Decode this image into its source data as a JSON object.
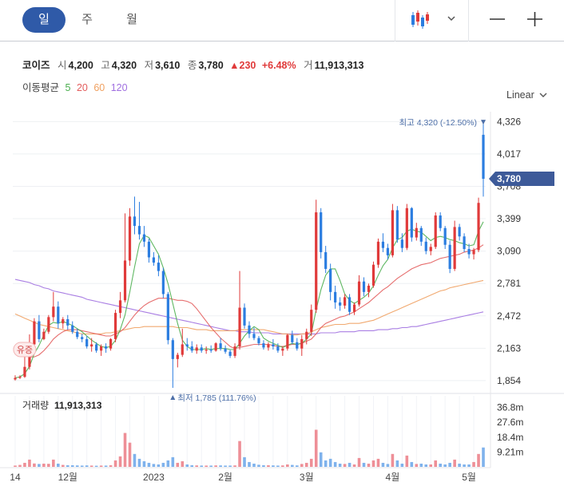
{
  "toolbar": {
    "tabs": [
      {
        "label": "일"
      },
      {
        "label": "주"
      },
      {
        "label": "월"
      }
    ],
    "chart_type_icon": "candlestick-icon",
    "dropdown_icon": "chevron-down-icon",
    "zoom_out_icon": "minus-icon",
    "zoom_in_icon": "plus-icon"
  },
  "info": {
    "name": "코이즈",
    "open_label": "시",
    "open": "4,200",
    "high_label": "고",
    "high": "4,320",
    "low_label": "저",
    "low": "3,610",
    "close_label": "종",
    "close": "3,780",
    "change": "▲230",
    "change_pct": "+6.48%",
    "volume_label": "거",
    "volume": "11,913,313"
  },
  "ma": {
    "label": "이동평균",
    "items": [
      {
        "period": "5",
        "color": "#4caf50"
      },
      {
        "period": "20",
        "color": "#e35d5d"
      },
      {
        "period": "60",
        "color": "#f0a060"
      },
      {
        "period": "120",
        "color": "#a070e0"
      }
    ]
  },
  "scale_label": "Linear",
  "colors": {
    "up": "#e03a3a",
    "down": "#2b7de0",
    "current": "#3d5a99",
    "grid": "#eef0f3"
  },
  "chart_data": [
    {
      "type": "candlestick",
      "price_ticks": [
        "4,326",
        "4,017",
        "3,708",
        "3,399",
        "3,090",
        "2,781",
        "2,472",
        "2,163",
        "1,854"
      ],
      "price_tick_values": [
        4326,
        4017,
        3708,
        3399,
        3090,
        2781,
        2472,
        2163,
        1854
      ],
      "ylim": [
        1800,
        4420
      ],
      "x_labels": [
        "14",
        "12월",
        "2023",
        "2월",
        "3월",
        "4월",
        "5월"
      ],
      "x_label_index": [
        0,
        11,
        29,
        44,
        61,
        79,
        95
      ],
      "current_price": "3,780",
      "max_annotation": "최고 4,320 (-12.50%)",
      "min_annotation": "최저 1,785 (111.76%)",
      "event_marker": "유증",
      "candles": [
        [
          1865,
          1905,
          1855,
          1880
        ],
        [
          1880,
          1905,
          1870,
          1890
        ],
        [
          1890,
          2130,
          1880,
          1985
        ],
        [
          1985,
          2295,
          1960,
          2200
        ],
        [
          2200,
          2450,
          2180,
          2420
        ],
        [
          2420,
          2480,
          2220,
          2250
        ],
        [
          2250,
          2350,
          2240,
          2320
        ],
        [
          2320,
          2480,
          2300,
          2460
        ],
        [
          2460,
          2700,
          2420,
          2560
        ],
        [
          2560,
          2610,
          2350,
          2400
        ],
        [
          2400,
          2460,
          2350,
          2440
        ],
        [
          2440,
          2480,
          2340,
          2380
        ],
        [
          2380,
          2420,
          2300,
          2320
        ],
        [
          2320,
          2350,
          2250,
          2270
        ],
        [
          2270,
          2300,
          2220,
          2250
        ],
        [
          2250,
          2280,
          2160,
          2180
        ],
        [
          2180,
          2260,
          2130,
          2200
        ],
        [
          2200,
          2220,
          2120,
          2140
        ],
        [
          2140,
          2200,
          2090,
          2180
        ],
        [
          2180,
          2210,
          2120,
          2160
        ],
        [
          2160,
          2260,
          2140,
          2250
        ],
        [
          2250,
          2530,
          2220,
          2500
        ],
        [
          2500,
          2700,
          2450,
          2620
        ],
        [
          2620,
          3450,
          2600,
          3000
        ],
        [
          3000,
          3500,
          2950,
          3420
        ],
        [
          3420,
          3610,
          3250,
          3330
        ],
        [
          3330,
          3560,
          3200,
          3250
        ],
        [
          3250,
          3330,
          3130,
          3180
        ],
        [
          3180,
          3210,
          2980,
          3030
        ],
        [
          3030,
          3080,
          2950,
          2980
        ],
        [
          2980,
          3050,
          2850,
          2900
        ],
        [
          2900,
          2930,
          2640,
          2680
        ],
        [
          2680,
          2700,
          2200,
          2240
        ],
        [
          2240,
          2260,
          1785,
          2060
        ],
        [
          2060,
          2120,
          1980,
          2100
        ],
        [
          2100,
          2350,
          2080,
          2200
        ],
        [
          2200,
          2260,
          2140,
          2180
        ],
        [
          2180,
          2230,
          2120,
          2140
        ],
        [
          2140,
          2200,
          2110,
          2170
        ],
        [
          2170,
          2200,
          2120,
          2140
        ],
        [
          2140,
          2180,
          2110,
          2150
        ],
        [
          2150,
          2190,
          2120,
          2140
        ],
        [
          2140,
          2220,
          2130,
          2210
        ],
        [
          2210,
          2260,
          2140,
          2160
        ],
        [
          2160,
          2190,
          2110,
          2130
        ],
        [
          2130,
          2150,
          2070,
          2090
        ],
        [
          2090,
          2210,
          2070,
          2180
        ],
        [
          2180,
          2900,
          2150,
          2550
        ],
        [
          2550,
          2590,
          2350,
          2380
        ],
        [
          2380,
          2420,
          2260,
          2300
        ],
        [
          2300,
          2360,
          2240,
          2260
        ],
        [
          2260,
          2280,
          2190,
          2210
        ],
        [
          2210,
          2240,
          2150,
          2170
        ],
        [
          2170,
          2220,
          2140,
          2200
        ],
        [
          2200,
          2250,
          2150,
          2180
        ],
        [
          2180,
          2210,
          2120,
          2140
        ],
        [
          2140,
          2180,
          2090,
          2160
        ],
        [
          2160,
          2300,
          2140,
          2290
        ],
        [
          2290,
          2330,
          2200,
          2220
        ],
        [
          2220,
          2260,
          2140,
          2160
        ],
        [
          2160,
          2290,
          2090,
          2250
        ],
        [
          2250,
          2350,
          2200,
          2320
        ],
        [
          2320,
          2580,
          2280,
          2530
        ],
        [
          2530,
          3580,
          2500,
          3460
        ],
        [
          3460,
          3500,
          3020,
          3080
        ],
        [
          3080,
          3140,
          2880,
          2920
        ],
        [
          2920,
          2970,
          2620,
          2700
        ],
        [
          2700,
          2760,
          2540,
          2600
        ],
        [
          2600,
          2650,
          2520,
          2570
        ],
        [
          2570,
          2680,
          2540,
          2650
        ],
        [
          2650,
          2680,
          2480,
          2510
        ],
        [
          2510,
          2600,
          2480,
          2580
        ],
        [
          2580,
          2860,
          2560,
          2800
        ],
        [
          2800,
          2840,
          2660,
          2700
        ],
        [
          2700,
          2780,
          2650,
          2760
        ],
        [
          2760,
          2990,
          2740,
          2960
        ],
        [
          2960,
          3210,
          2930,
          3180
        ],
        [
          3180,
          3260,
          3080,
          3120
        ],
        [
          3120,
          3160,
          3010,
          3050
        ],
        [
          3050,
          3540,
          3030,
          3480
        ],
        [
          3480,
          3520,
          3170,
          3200
        ],
        [
          3200,
          3260,
          3080,
          3120
        ],
        [
          3120,
          3540,
          3100,
          3500
        ],
        [
          3500,
          3510,
          3180,
          3220
        ],
        [
          3220,
          3360,
          3190,
          3310
        ],
        [
          3310,
          3330,
          3140,
          3180
        ],
        [
          3180,
          3220,
          3060,
          3090
        ],
        [
          3090,
          3160,
          3050,
          3130
        ],
        [
          3130,
          3460,
          3110,
          3430
        ],
        [
          3430,
          3460,
          3280,
          3310
        ],
        [
          3310,
          3330,
          3110,
          3150
        ],
        [
          3150,
          3190,
          2880,
          2920
        ],
        [
          2920,
          3380,
          2900,
          3320
        ],
        [
          3320,
          3350,
          3190,
          3230
        ],
        [
          3230,
          3260,
          3080,
          3110
        ],
        [
          3110,
          3160,
          3020,
          3060
        ],
        [
          3060,
          3120,
          3010,
          3100
        ],
        [
          3100,
          3600,
          3080,
          3550
        ],
        [
          4200,
          4320,
          3610,
          3780
        ]
      ],
      "ma5": [
        1880,
        1890,
        1920,
        1990,
        2110,
        2190,
        2290,
        2380,
        2410,
        2400,
        2420,
        2400,
        2380,
        2350,
        2320,
        2280,
        2240,
        2210,
        2180,
        2170,
        2180,
        2240,
        2340,
        2480,
        2700,
        2940,
        3160,
        3240,
        3220,
        3140,
        3060,
        2930,
        2780,
        2590,
        2400,
        2240,
        2180,
        2150,
        2150,
        2150,
        2160,
        2150,
        2160,
        2160,
        2160,
        2150,
        2150,
        2210,
        2280,
        2330,
        2370,
        2340,
        2260,
        2230,
        2210,
        2190,
        2170,
        2190,
        2210,
        2200,
        2210,
        2250,
        2300,
        2530,
        2720,
        2860,
        2920,
        2920,
        2810,
        2680,
        2620,
        2590,
        2620,
        2650,
        2690,
        2760,
        2860,
        2950,
        3010,
        3120,
        3200,
        3220,
        3280,
        3300,
        3280,
        3270,
        3230,
        3190,
        3220,
        3230,
        3220,
        3200,
        3190,
        3170,
        3160,
        3140,
        3150,
        3280,
        3370
      ],
      "ma20": [
        2140,
        2120,
        2100,
        2080,
        2080,
        2100,
        2140,
        2190,
        2250,
        2290,
        2320,
        2340,
        2340,
        2340,
        2330,
        2320,
        2310,
        2300,
        2290,
        2280,
        2280,
        2300,
        2320,
        2360,
        2420,
        2480,
        2530,
        2570,
        2600,
        2620,
        2640,
        2640,
        2640,
        2630,
        2620,
        2620,
        2610,
        2590,
        2540,
        2480,
        2420,
        2360,
        2310,
        2260,
        2220,
        2180,
        2160,
        2170,
        2180,
        2190,
        2200,
        2200,
        2200,
        2200,
        2190,
        2180,
        2180,
        2190,
        2200,
        2200,
        2210,
        2230,
        2250,
        2300,
        2360,
        2400,
        2420,
        2440,
        2460,
        2470,
        2490,
        2510,
        2540,
        2570,
        2600,
        2640,
        2680,
        2720,
        2750,
        2790,
        2830,
        2860,
        2890,
        2920,
        2940,
        2960,
        2970,
        2980,
        3000,
        3020,
        3030,
        3040,
        3050,
        3060,
        3080,
        3090,
        3100,
        3120,
        3150
      ],
      "ma60": [
        2490,
        2470,
        2450,
        2430,
        2410,
        2390,
        2380,
        2370,
        2360,
        2350,
        2340,
        2330,
        2320,
        2310,
        2300,
        2300,
        2300,
        2300,
        2300,
        2310,
        2310,
        2320,
        2330,
        2340,
        2350,
        2360,
        2360,
        2370,
        2370,
        2370,
        2370,
        2370,
        2370,
        2370,
        2360,
        2360,
        2360,
        2350,
        2340,
        2340,
        2340,
        2330,
        2330,
        2330,
        2330,
        2330,
        2330,
        2340,
        2340,
        2340,
        2340,
        2340,
        2340,
        2330,
        2320,
        2310,
        2300,
        2300,
        2290,
        2290,
        2300,
        2300,
        2320,
        2340,
        2360,
        2370,
        2380,
        2390,
        2390,
        2390,
        2400,
        2400,
        2400,
        2410,
        2420,
        2430,
        2450,
        2470,
        2490,
        2510,
        2530,
        2550,
        2570,
        2590,
        2610,
        2630,
        2650,
        2670,
        2690,
        2710,
        2720,
        2740,
        2750,
        2760,
        2770,
        2780,
        2790,
        2800,
        2810
      ],
      "ma120": [
        2820,
        2810,
        2800,
        2790,
        2770,
        2760,
        2740,
        2730,
        2710,
        2700,
        2690,
        2680,
        2670,
        2660,
        2650,
        2630,
        2620,
        2610,
        2600,
        2590,
        2580,
        2570,
        2560,
        2550,
        2540,
        2530,
        2520,
        2510,
        2500,
        2490,
        2480,
        2470,
        2460,
        2450,
        2440,
        2430,
        2420,
        2410,
        2400,
        2390,
        2380,
        2370,
        2360,
        2350,
        2340,
        2330,
        2330,
        2320,
        2320,
        2320,
        2310,
        2310,
        2310,
        2310,
        2300,
        2300,
        2300,
        2300,
        2300,
        2300,
        2300,
        2300,
        2300,
        2300,
        2310,
        2310,
        2310,
        2310,
        2320,
        2320,
        2320,
        2320,
        2330,
        2330,
        2330,
        2330,
        2340,
        2340,
        2340,
        2350,
        2350,
        2360,
        2360,
        2370,
        2370,
        2380,
        2390,
        2400,
        2410,
        2420,
        2430,
        2440,
        2450,
        2460,
        2470,
        2480,
        2490,
        2500,
        2510
      ]
    },
    {
      "type": "bar",
      "title": "거래량",
      "value": "11,913,313",
      "y_ticks": [
        "36.8m",
        "27.6m",
        "18.4m",
        "9.21m"
      ],
      "y_tick_values": [
        36.8,
        27.6,
        18.4,
        9.21
      ],
      "ylim": [
        0,
        44
      ],
      "values": [
        0.8,
        1.2,
        2.5,
        4.5,
        2.1,
        1.8,
        2.0,
        1.9,
        4.5,
        2.0,
        1.2,
        1.0,
        1.0,
        0.9,
        0.8,
        0.9,
        0.8,
        0.7,
        0.8,
        0.8,
        1.0,
        4.0,
        6.5,
        21.0,
        15.0,
        8.0,
        5.0,
        3.5,
        2.5,
        1.8,
        1.5,
        2.5,
        4.0,
        6.0,
        2.5,
        3.5,
        1.5,
        1.0,
        0.9,
        0.8,
        0.8,
        0.8,
        0.9,
        0.9,
        0.8,
        0.8,
        0.9,
        16.0,
        6.0,
        3.0,
        2.0,
        1.3,
        1.0,
        1.0,
        0.9,
        0.8,
        0.9,
        1.5,
        1.2,
        0.9,
        1.8,
        2.5,
        5.0,
        23.0,
        9.0,
        4.0,
        5.0,
        3.0,
        2.0,
        1.8,
        2.5,
        1.5,
        5.5,
        2.5,
        2.0,
        4.0,
        5.0,
        2.5,
        1.8,
        8.0,
        4.0,
        2.0,
        7.0,
        3.0,
        1.8,
        2.0,
        1.5,
        1.5,
        4.0,
        2.0,
        1.5,
        2.5,
        4.5,
        2.0,
        1.5,
        1.5,
        3.0,
        8.0,
        12.0
      ]
    }
  ]
}
